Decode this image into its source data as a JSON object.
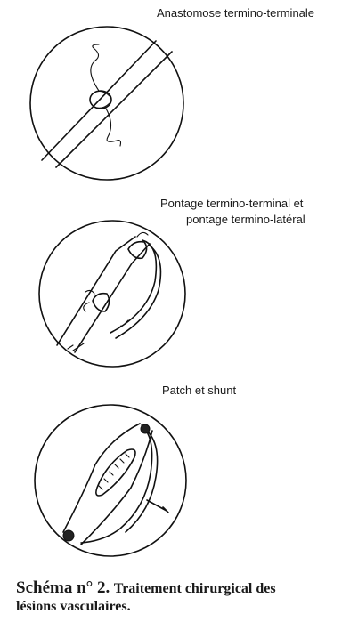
{
  "panels": [
    {
      "title": "Anastomose termino-terminale"
    },
    {
      "title_line1": "Pontage termino-terminal et",
      "title_line2": "pontage termino-latéral"
    },
    {
      "title": "Patch et shunt"
    }
  ],
  "caption": {
    "head": "Schéma n° 2.",
    "text_line1": "Traitement chirurgical des",
    "text_line2": "lésions vasculaires."
  },
  "colors": {
    "ink": "#111111",
    "paper": "#ffffff"
  }
}
